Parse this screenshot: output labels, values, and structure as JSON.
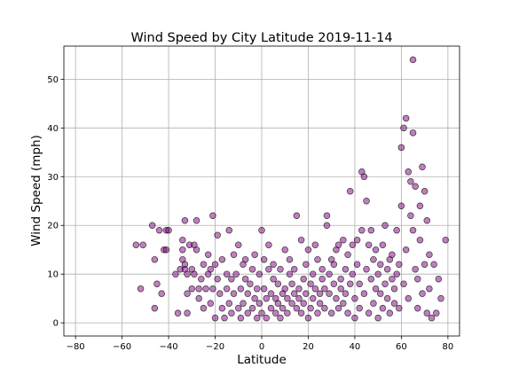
{
  "chart_data": {
    "type": "scatter",
    "title": "Wind Speed by City Latitude  2019-11-14",
    "xlabel": "Latitude",
    "ylabel": "Wind Speed (mph)",
    "xlim": [
      -85,
      85
    ],
    "ylim": [
      -2.7,
      56.8
    ],
    "xticks": [
      -80,
      -60,
      -40,
      -20,
      0,
      20,
      40,
      60,
      80
    ],
    "yticks": [
      0,
      10,
      20,
      30,
      40,
      50
    ],
    "grid": true,
    "marker_color": "#800080",
    "marker_edge": "#000000",
    "marker_alpha": 0.5,
    "series": [
      {
        "points": [
          [
            -54,
            16
          ],
          [
            -52,
            7
          ],
          [
            -51,
            16
          ],
          [
            -47,
            20
          ],
          [
            -46,
            13
          ],
          [
            -46,
            3
          ],
          [
            -45,
            8
          ],
          [
            -44,
            19
          ],
          [
            -43,
            6
          ],
          [
            -42,
            15
          ],
          [
            -41,
            19
          ],
          [
            -41,
            15
          ],
          [
            -40,
            19
          ],
          [
            -37,
            10
          ],
          [
            -36,
            2
          ],
          [
            -35,
            11
          ],
          [
            -34,
            17
          ],
          [
            -34,
            15
          ],
          [
            -34,
            13
          ],
          [
            -33,
            11
          ],
          [
            -33,
            21
          ],
          [
            -33,
            12
          ],
          [
            -32,
            10
          ],
          [
            -32,
            6
          ],
          [
            -32,
            2
          ],
          [
            -31,
            16
          ],
          [
            -30,
            11
          ],
          [
            -30,
            7
          ],
          [
            -29,
            16
          ],
          [
            -29,
            10
          ],
          [
            -28,
            15
          ],
          [
            -28,
            21
          ],
          [
            -27,
            7
          ],
          [
            -27,
            5
          ],
          [
            -26,
            9
          ],
          [
            -25,
            12
          ],
          [
            -25,
            3
          ],
          [
            -24,
            7
          ],
          [
            -23,
            10
          ],
          [
            -23,
            14
          ],
          [
            -22,
            11
          ],
          [
            -22,
            4
          ],
          [
            -21,
            22
          ],
          [
            -21,
            7
          ],
          [
            -20,
            1
          ],
          [
            -20,
            12
          ],
          [
            -19,
            9
          ],
          [
            -19,
            18
          ],
          [
            -18,
            6
          ],
          [
            -17,
            3
          ],
          [
            -17,
            13
          ],
          [
            -16,
            1
          ],
          [
            -15,
            7
          ],
          [
            -15,
            10
          ],
          [
            -14,
            19
          ],
          [
            -14,
            4
          ],
          [
            -13,
            2
          ],
          [
            -13,
            9
          ],
          [
            -12,
            14
          ],
          [
            -12,
            6
          ],
          [
            -11,
            10
          ],
          [
            -10,
            3
          ],
          [
            -10,
            16
          ],
          [
            -9,
            7
          ],
          [
            -9,
            1
          ],
          [
            -8,
            12
          ],
          [
            -8,
            4
          ],
          [
            -7,
            9
          ],
          [
            -7,
            13
          ],
          [
            -6,
            2
          ],
          [
            -6,
            6
          ],
          [
            -5,
            8
          ],
          [
            -4,
            11
          ],
          [
            -4,
            3
          ],
          [
            -3,
            5
          ],
          [
            -3,
            14
          ],
          [
            -2,
            1
          ],
          [
            -2,
            7
          ],
          [
            -1,
            10
          ],
          [
            -1,
            4
          ],
          [
            0,
            19
          ],
          [
            0,
            2
          ],
          [
            1,
            7
          ],
          [
            1,
            13
          ],
          [
            2,
            5
          ],
          [
            2,
            1
          ],
          [
            3,
            11
          ],
          [
            3,
            16
          ],
          [
            4,
            3
          ],
          [
            4,
            6
          ],
          [
            5,
            9
          ],
          [
            5,
            12
          ],
          [
            6,
            2
          ],
          [
            6,
            5
          ],
          [
            7,
            8
          ],
          [
            7,
            4
          ],
          [
            8,
            11
          ],
          [
            8,
            1
          ],
          [
            9,
            6
          ],
          [
            9,
            3
          ],
          [
            10,
            15
          ],
          [
            10,
            7
          ],
          [
            11,
            2
          ],
          [
            11,
            5
          ],
          [
            12,
            13
          ],
          [
            12,
            10
          ],
          [
            13,
            4
          ],
          [
            13,
            8
          ],
          [
            14,
            6
          ],
          [
            14,
            11
          ],
          [
            15,
            22
          ],
          [
            15,
            3
          ],
          [
            16,
            7
          ],
          [
            16,
            5
          ],
          [
            17,
            17
          ],
          [
            17,
            2
          ],
          [
            18,
            9
          ],
          [
            18,
            4
          ],
          [
            19,
            6
          ],
          [
            19,
            12
          ],
          [
            20,
            1
          ],
          [
            20,
            15
          ],
          [
            21,
            8
          ],
          [
            21,
            3
          ],
          [
            22,
            10
          ],
          [
            22,
            5
          ],
          [
            23,
            16
          ],
          [
            23,
            7
          ],
          [
            24,
            2
          ],
          [
            24,
            13
          ],
          [
            25,
            6
          ],
          [
            25,
            4
          ],
          [
            26,
            11
          ],
          [
            26,
            9
          ],
          [
            27,
            3
          ],
          [
            27,
            7
          ],
          [
            28,
            20
          ],
          [
            28,
            22
          ],
          [
            29,
            10
          ],
          [
            29,
            6
          ],
          [
            30,
            13
          ],
          [
            30,
            2
          ],
          [
            31,
            8
          ],
          [
            31,
            12
          ],
          [
            32,
            5
          ],
          [
            32,
            15
          ],
          [
            33,
            16
          ],
          [
            33,
            3
          ],
          [
            34,
            9
          ],
          [
            34,
            7
          ],
          [
            35,
            17
          ],
          [
            35,
            4
          ],
          [
            36,
            11
          ],
          [
            36,
            6
          ],
          [
            37,
            14
          ],
          [
            37,
            2
          ],
          [
            38,
            27
          ],
          [
            38,
            8
          ],
          [
            39,
            10
          ],
          [
            39,
            16
          ],
          [
            40,
            5
          ],
          [
            40,
            1
          ],
          [
            41,
            12
          ],
          [
            41,
            17
          ],
          [
            42,
            8
          ],
          [
            42,
            3
          ],
          [
            43,
            19
          ],
          [
            43,
            31
          ],
          [
            44,
            30
          ],
          [
            44,
            6
          ],
          [
            45,
            25
          ],
          [
            45,
            11
          ],
          [
            46,
            16
          ],
          [
            46,
            2
          ],
          [
            47,
            19
          ],
          [
            47,
            9
          ],
          [
            48,
            13
          ],
          [
            48,
            4
          ],
          [
            49,
            7
          ],
          [
            49,
            15
          ],
          [
            50,
            1
          ],
          [
            50,
            10
          ],
          [
            51,
            12
          ],
          [
            51,
            6
          ],
          [
            52,
            16
          ],
          [
            52,
            3
          ],
          [
            53,
            20
          ],
          [
            53,
            8
          ],
          [
            54,
            11
          ],
          [
            54,
            5
          ],
          [
            55,
            13
          ],
          [
            55,
            2
          ],
          [
            56,
            9
          ],
          [
            56,
            14
          ],
          [
            57,
            7
          ],
          [
            57,
            4
          ],
          [
            58,
            10
          ],
          [
            58,
            19
          ],
          [
            59,
            12
          ],
          [
            59,
            3
          ],
          [
            60,
            24
          ],
          [
            60,
            36
          ],
          [
            61,
            40
          ],
          [
            61,
            8
          ],
          [
            62,
            42
          ],
          [
            62,
            15
          ],
          [
            63,
            31
          ],
          [
            63,
            5
          ],
          [
            64,
            22
          ],
          [
            64,
            29
          ],
          [
            65,
            39
          ],
          [
            65,
            54
          ],
          [
            65,
            19
          ],
          [
            66,
            28
          ],
          [
            66,
            11
          ],
          [
            67,
            9
          ],
          [
            67,
            3
          ],
          [
            68,
            24
          ],
          [
            68,
            17
          ],
          [
            69,
            32
          ],
          [
            69,
            6
          ],
          [
            70,
            27
          ],
          [
            70,
            12
          ],
          [
            71,
            21
          ],
          [
            71,
            2
          ],
          [
            72,
            14
          ],
          [
            72,
            7
          ],
          [
            73,
            1
          ],
          [
            74,
            12
          ],
          [
            75,
            2
          ],
          [
            76,
            9
          ],
          [
            77,
            5
          ],
          [
            79,
            17
          ]
        ]
      }
    ]
  }
}
